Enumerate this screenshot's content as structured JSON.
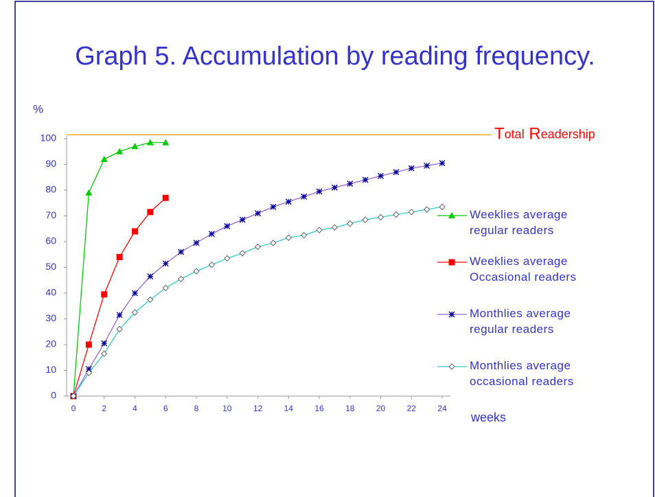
{
  "chart_data": {
    "type": "line",
    "title": "Graph 5. Accumulation by reading frequency.",
    "y_label": "%",
    "x_label": "weeks",
    "annotation": "Total Readership",
    "reference_line": 101.5,
    "reference_color": "#ff9900",
    "xlim": [
      0,
      24
    ],
    "xticks": [
      0,
      2,
      4,
      6,
      8,
      10,
      12,
      14,
      16,
      18,
      20,
      22,
      24
    ],
    "ylim": [
      0,
      100
    ],
    "yticks": [
      0,
      10,
      20,
      30,
      40,
      50,
      60,
      70,
      80,
      90,
      100
    ],
    "series": [
      {
        "name": "Weeklies average regular readers",
        "color": "#00cc00",
        "marker": "triangle",
        "marker_color": "#00cc00",
        "x": [
          0,
          1,
          2,
          3,
          4,
          5,
          6
        ],
        "values": [
          0,
          79,
          92,
          95,
          97,
          98.5,
          98.5
        ]
      },
      {
        "name": "Weeklies average Occasional readers",
        "color": "#ff0000",
        "marker": "square",
        "marker_color": "#ff0000",
        "x": [
          0,
          1,
          2,
          3,
          4,
          5,
          6
        ],
        "values": [
          0,
          20,
          39.5,
          54,
          64,
          71.5,
          77
        ]
      },
      {
        "name": "Monthlies average regular readers",
        "color": "#9966cc",
        "marker": "star",
        "marker_color": "#000099",
        "x": [
          0,
          1,
          2,
          3,
          4,
          5,
          6,
          7,
          8,
          9,
          10,
          11,
          12,
          13,
          14,
          15,
          16,
          17,
          18,
          19,
          20,
          21,
          22,
          23,
          24
        ],
        "values": [
          0,
          10.5,
          20.5,
          31.5,
          40,
          46.5,
          51.5,
          56,
          59.5,
          63,
          66,
          68.5,
          71,
          73.5,
          75.5,
          77.5,
          79.5,
          81,
          82.5,
          84,
          85.5,
          87,
          88.5,
          89.5,
          90.5
        ]
      },
      {
        "name": "Monthlies average occasional readers",
        "color": "#33cccc",
        "marker": "diamond",
        "marker_color": "#666666",
        "x": [
          0,
          1,
          2,
          3,
          4,
          5,
          6,
          7,
          8,
          9,
          10,
          11,
          12,
          13,
          14,
          15,
          16,
          17,
          18,
          19,
          20,
          21,
          22,
          23,
          24
        ],
        "values": [
          0,
          9,
          16.5,
          26,
          32.5,
          37.5,
          42,
          45.5,
          48.5,
          51,
          53.5,
          55.5,
          58,
          59.5,
          61.5,
          62.5,
          64.5,
          65.5,
          67,
          68.5,
          69.5,
          70.5,
          71.5,
          72.5,
          73.5
        ]
      }
    ]
  }
}
